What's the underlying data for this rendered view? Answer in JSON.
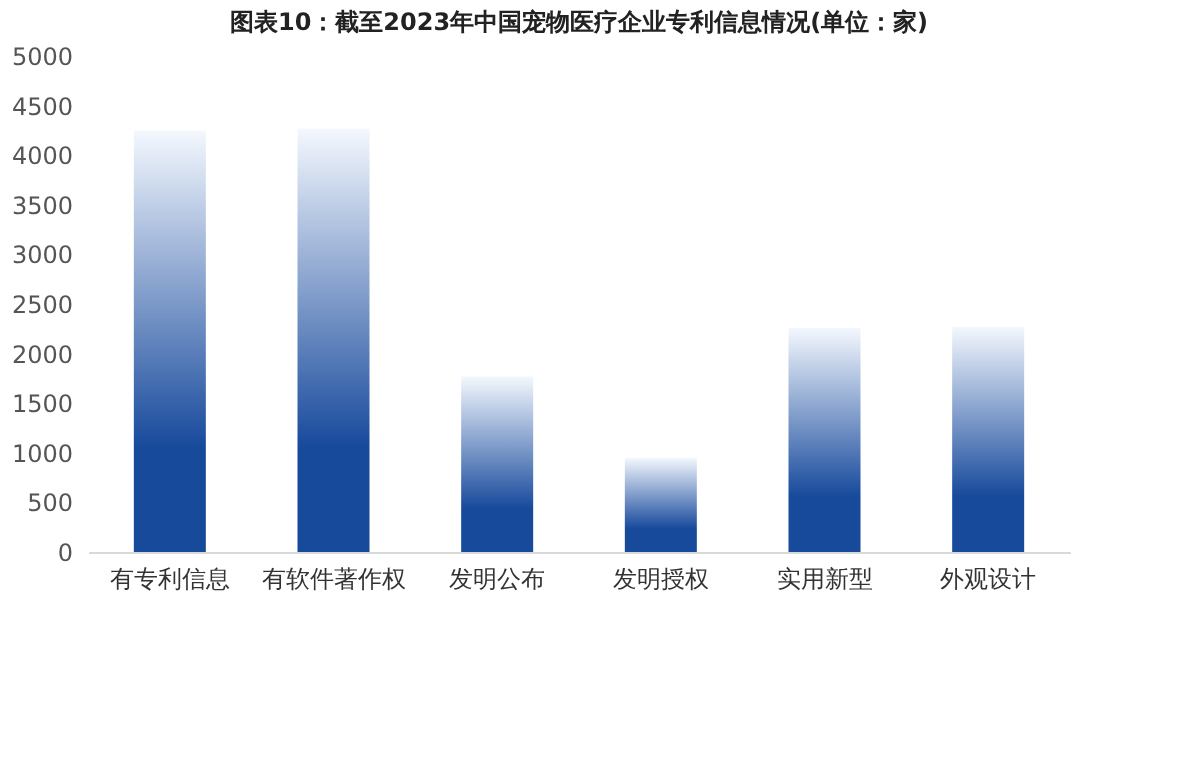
{
  "chart_data": {
    "type": "bar",
    "title": "图表10：截至2023年中国宠物医疗企业专利信息情况(单位：家)",
    "categories": [
      "有专利信息",
      "有软件著作权",
      "发明公布",
      "发明授权",
      "实用新型",
      "外观设计"
    ],
    "values": [
      4250,
      4270,
      1770,
      950,
      2260,
      2270
    ],
    "color": "#184a9c",
    "ylim": [
      0,
      5000
    ],
    "yticks": [
      0,
      500,
      1000,
      1500,
      2000,
      2500,
      3000,
      3500,
      4000,
      4500,
      5000
    ],
    "grid": false
  }
}
